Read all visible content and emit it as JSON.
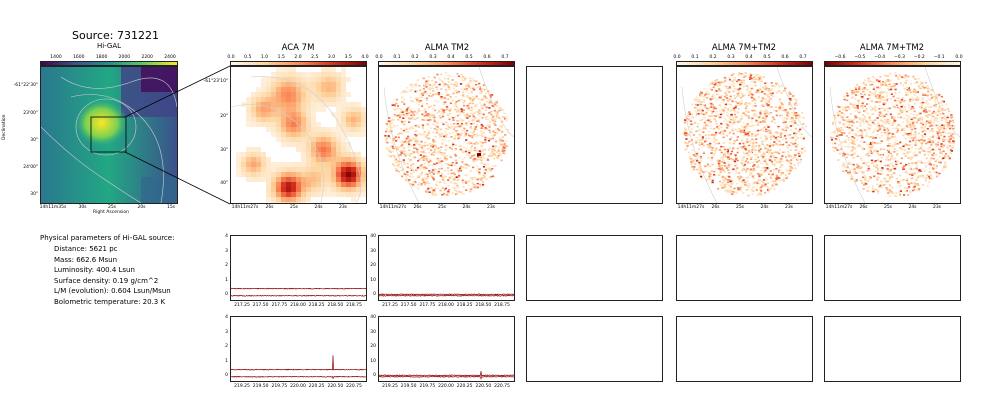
{
  "source_title": "Source: 731221",
  "panels": {
    "higal": {
      "title": "Hi-GAL",
      "cbar_ticks": [
        "1400",
        "1600",
        "1800",
        "2000",
        "2200",
        "2400"
      ],
      "xticks": [
        "14h11m35s",
        "30s",
        "25s",
        "20s",
        "15s"
      ],
      "yticks": [
        "-61°22'30\"",
        "23'00\"",
        "30\"",
        "24'00\"",
        "30\""
      ],
      "xlabel": "Right Ascension",
      "ylabel": "Declination"
    },
    "aca": {
      "title": "ACA 7M",
      "cbar_ticks": [
        "0.0",
        "0.5",
        "1.0",
        "1.5",
        "2.0",
        "2.5",
        "3.0",
        "3.5",
        "4.0"
      ],
      "xticks": [
        "14h11m27s",
        "26s",
        "25s",
        "24s",
        "23s"
      ],
      "yticks": [
        "-61°23'10\"",
        "20\"",
        "30\"",
        "40\""
      ]
    },
    "tm2": {
      "title": "ALMA TM2",
      "cbar_ticks": [
        "0.0",
        "0.1",
        "0.2",
        "0.3",
        "0.4",
        "0.5",
        "0.6",
        "0.7"
      ],
      "xticks": [
        "14h11m27s",
        "26s",
        "25s",
        "24s",
        "23s"
      ]
    },
    "combo": {
      "title": "ALMA 7M+TM2",
      "cbar_ticks": [
        "0.0",
        "0.1",
        "0.2",
        "0.3",
        "0.4",
        "0.5",
        "0.6",
        "0.7"
      ],
      "xticks": [
        "14h11m27s",
        "26s",
        "25s",
        "24s",
        "23s"
      ]
    },
    "combo_neg": {
      "title": "ALMA 7M+TM2",
      "cbar_ticks": [
        "−0.6",
        "−0.5",
        "−0.4",
        "−0.3",
        "−0.2",
        "−0.1",
        "0.0"
      ],
      "xticks": [
        "14h11m27s",
        "26s",
        "25s",
        "24s",
        "23s"
      ]
    }
  },
  "params": {
    "heading": "Physical parameters of Hi-GAL source:",
    "lines": [
      "Distance: 5621 pc",
      "Mass: 662.6 Msun",
      "Luminosity: 400.4 Lsun",
      "Surface density: 0.19 g/cm^2",
      "L/M (evolution): 0.604 Lsun/Msun",
      "Bolometric temperature: 20.3 K"
    ]
  },
  "spectra": {
    "aca_row1": {
      "yticks": [
        "0",
        "1",
        "2",
        "3",
        "4"
      ],
      "xticks": [
        "217.25",
        "217.50",
        "217.75",
        "218.00",
        "218.25",
        "218.50",
        "218.75"
      ]
    },
    "tm2_row1": {
      "yticks": [
        "0",
        "10",
        "20",
        "30",
        "40"
      ],
      "xticks": [
        "217.25",
        "217.50",
        "217.75",
        "218.00",
        "218.25",
        "218.50",
        "218.75"
      ]
    },
    "aca_row2": {
      "yticks": [
        "0",
        "1",
        "2",
        "3",
        "4"
      ],
      "xticks": [
        "219.25",
        "219.50",
        "219.75",
        "220.00",
        "220.25",
        "220.50",
        "220.75"
      ]
    },
    "tm2_row2": {
      "yticks": [
        "0",
        "10",
        "20",
        "30",
        "40"
      ],
      "xticks": [
        "219.25",
        "219.50",
        "219.75",
        "220.00",
        "220.25",
        "220.50",
        "220.75"
      ]
    }
  },
  "chart_data": [
    {
      "type": "heatmap",
      "title": "Hi-GAL",
      "colormap": "viridis",
      "clim": [
        1300,
        2450
      ]
    },
    {
      "type": "heatmap",
      "title": "ACA 7M",
      "colormap": "OrRd",
      "clim": [
        0.0,
        4.0
      ]
    },
    {
      "type": "heatmap",
      "title": "ALMA TM2",
      "colormap": "OrRd",
      "clim": [
        0.0,
        0.75
      ]
    },
    {
      "type": "heatmap",
      "title": "ALMA 7M+TM2",
      "colormap": "OrRd",
      "clim": [
        0.0,
        0.75
      ]
    },
    {
      "type": "heatmap",
      "title": "ALMA 7M+TM2",
      "colormap": "OrRd_r",
      "clim": [
        -0.65,
        0.0
      ]
    },
    {
      "type": "line",
      "panel": "ACA row1",
      "xlim": [
        217.1,
        218.9
      ],
      "ylim": [
        -0.3,
        4.2
      ],
      "series_levels": [
        0.5,
        0.0
      ]
    },
    {
      "type": "line",
      "panel": "TM2 row1",
      "xlim": [
        217.1,
        218.9
      ],
      "ylim": [
        -3,
        42
      ],
      "series_levels": [
        1.0,
        0.0
      ]
    },
    {
      "type": "line",
      "panel": "ACA row2",
      "xlim": [
        219.1,
        220.9
      ],
      "ylim": [
        -0.3,
        4.2
      ],
      "series_levels": [
        0.5,
        0.0
      ],
      "peak_x": 220.46,
      "peak_y": 1.5
    },
    {
      "type": "line",
      "panel": "TM2 row2",
      "xlim": [
        219.1,
        220.9
      ],
      "ylim": [
        -3,
        42
      ],
      "series_levels": [
        1.0,
        0.0
      ],
      "peak_x": 220.46,
      "peak_y": 4
    }
  ],
  "colors": {
    "spectrum": "#8b0000",
    "contour": "#cfcfcf",
    "frame": "#222222"
  }
}
